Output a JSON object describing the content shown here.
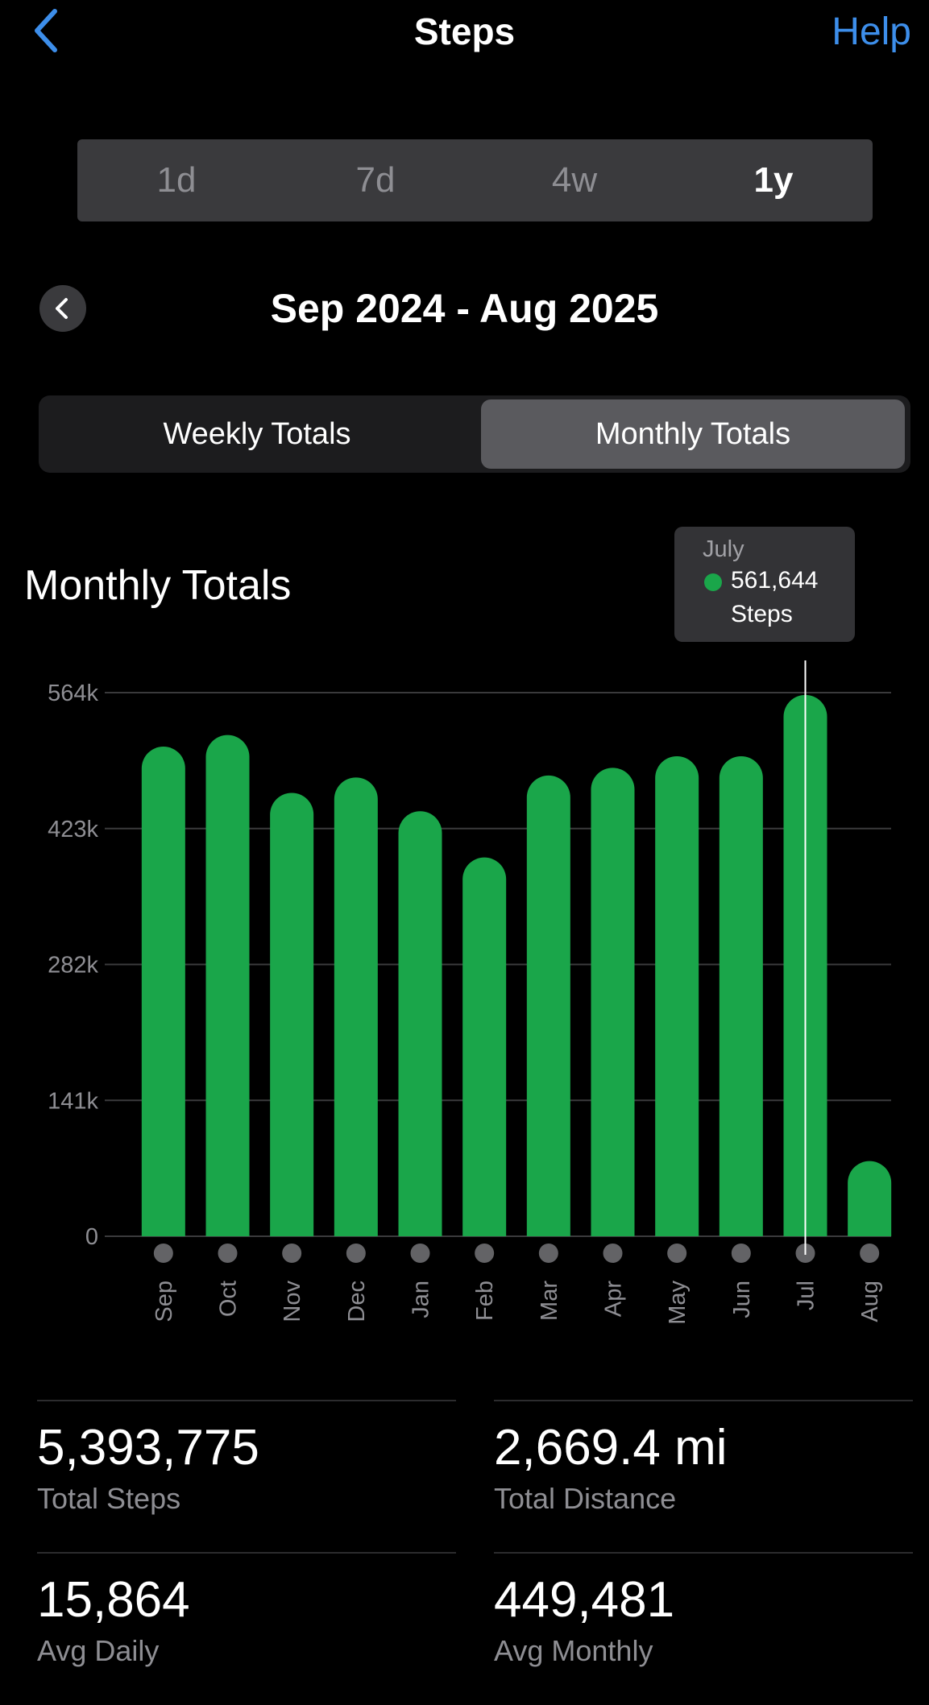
{
  "header": {
    "title": "Steps",
    "help_label": "Help",
    "back_icon": "chevron-left-icon"
  },
  "range_tabs": [
    {
      "label": "1d",
      "active": false
    },
    {
      "label": "7d",
      "active": false
    },
    {
      "label": "4w",
      "active": false
    },
    {
      "label": "1y",
      "active": true
    }
  ],
  "period": {
    "label": "Sep 2024 - Aug 2025",
    "prev_icon": "chevron-left-icon"
  },
  "totals_tabs": [
    {
      "label": "Weekly Totals",
      "active": false
    },
    {
      "label": "Monthly Totals",
      "active": true
    }
  ],
  "chart_section": {
    "title": "Monthly Totals",
    "tooltip": {
      "month": "July",
      "value": "561,644",
      "unit": "Steps"
    }
  },
  "colors": {
    "bar": "#1aa64a",
    "accent": "#3d8eea",
    "grid": "#3a3a3c",
    "axis_text": "#8e8e93"
  },
  "chart_data": {
    "type": "bar",
    "title": "Monthly Totals",
    "categories": [
      "Sep",
      "Oct",
      "Nov",
      "Dec",
      "Jan",
      "Feb",
      "Mar",
      "Apr",
      "May",
      "Jun",
      "Jul",
      "Aug"
    ],
    "values": [
      508000,
      520000,
      460000,
      476000,
      441000,
      393000,
      478000,
      486000,
      498000,
      498000,
      561644,
      78000
    ],
    "yticks": [
      0,
      141000,
      282000,
      423000,
      564000
    ],
    "ytick_labels": [
      "0",
      "141k",
      "282k",
      "423k",
      "564k"
    ],
    "ylim": [
      0,
      564000
    ],
    "selected_index": 10,
    "grid": true
  },
  "stats": [
    {
      "value": "5,393,775",
      "label": "Total Steps"
    },
    {
      "value": "2,669.4 mi",
      "label": "Total Distance"
    },
    {
      "value": "15,864",
      "label": "Avg Daily"
    },
    {
      "value": "449,481",
      "label": "Avg Monthly"
    }
  ]
}
